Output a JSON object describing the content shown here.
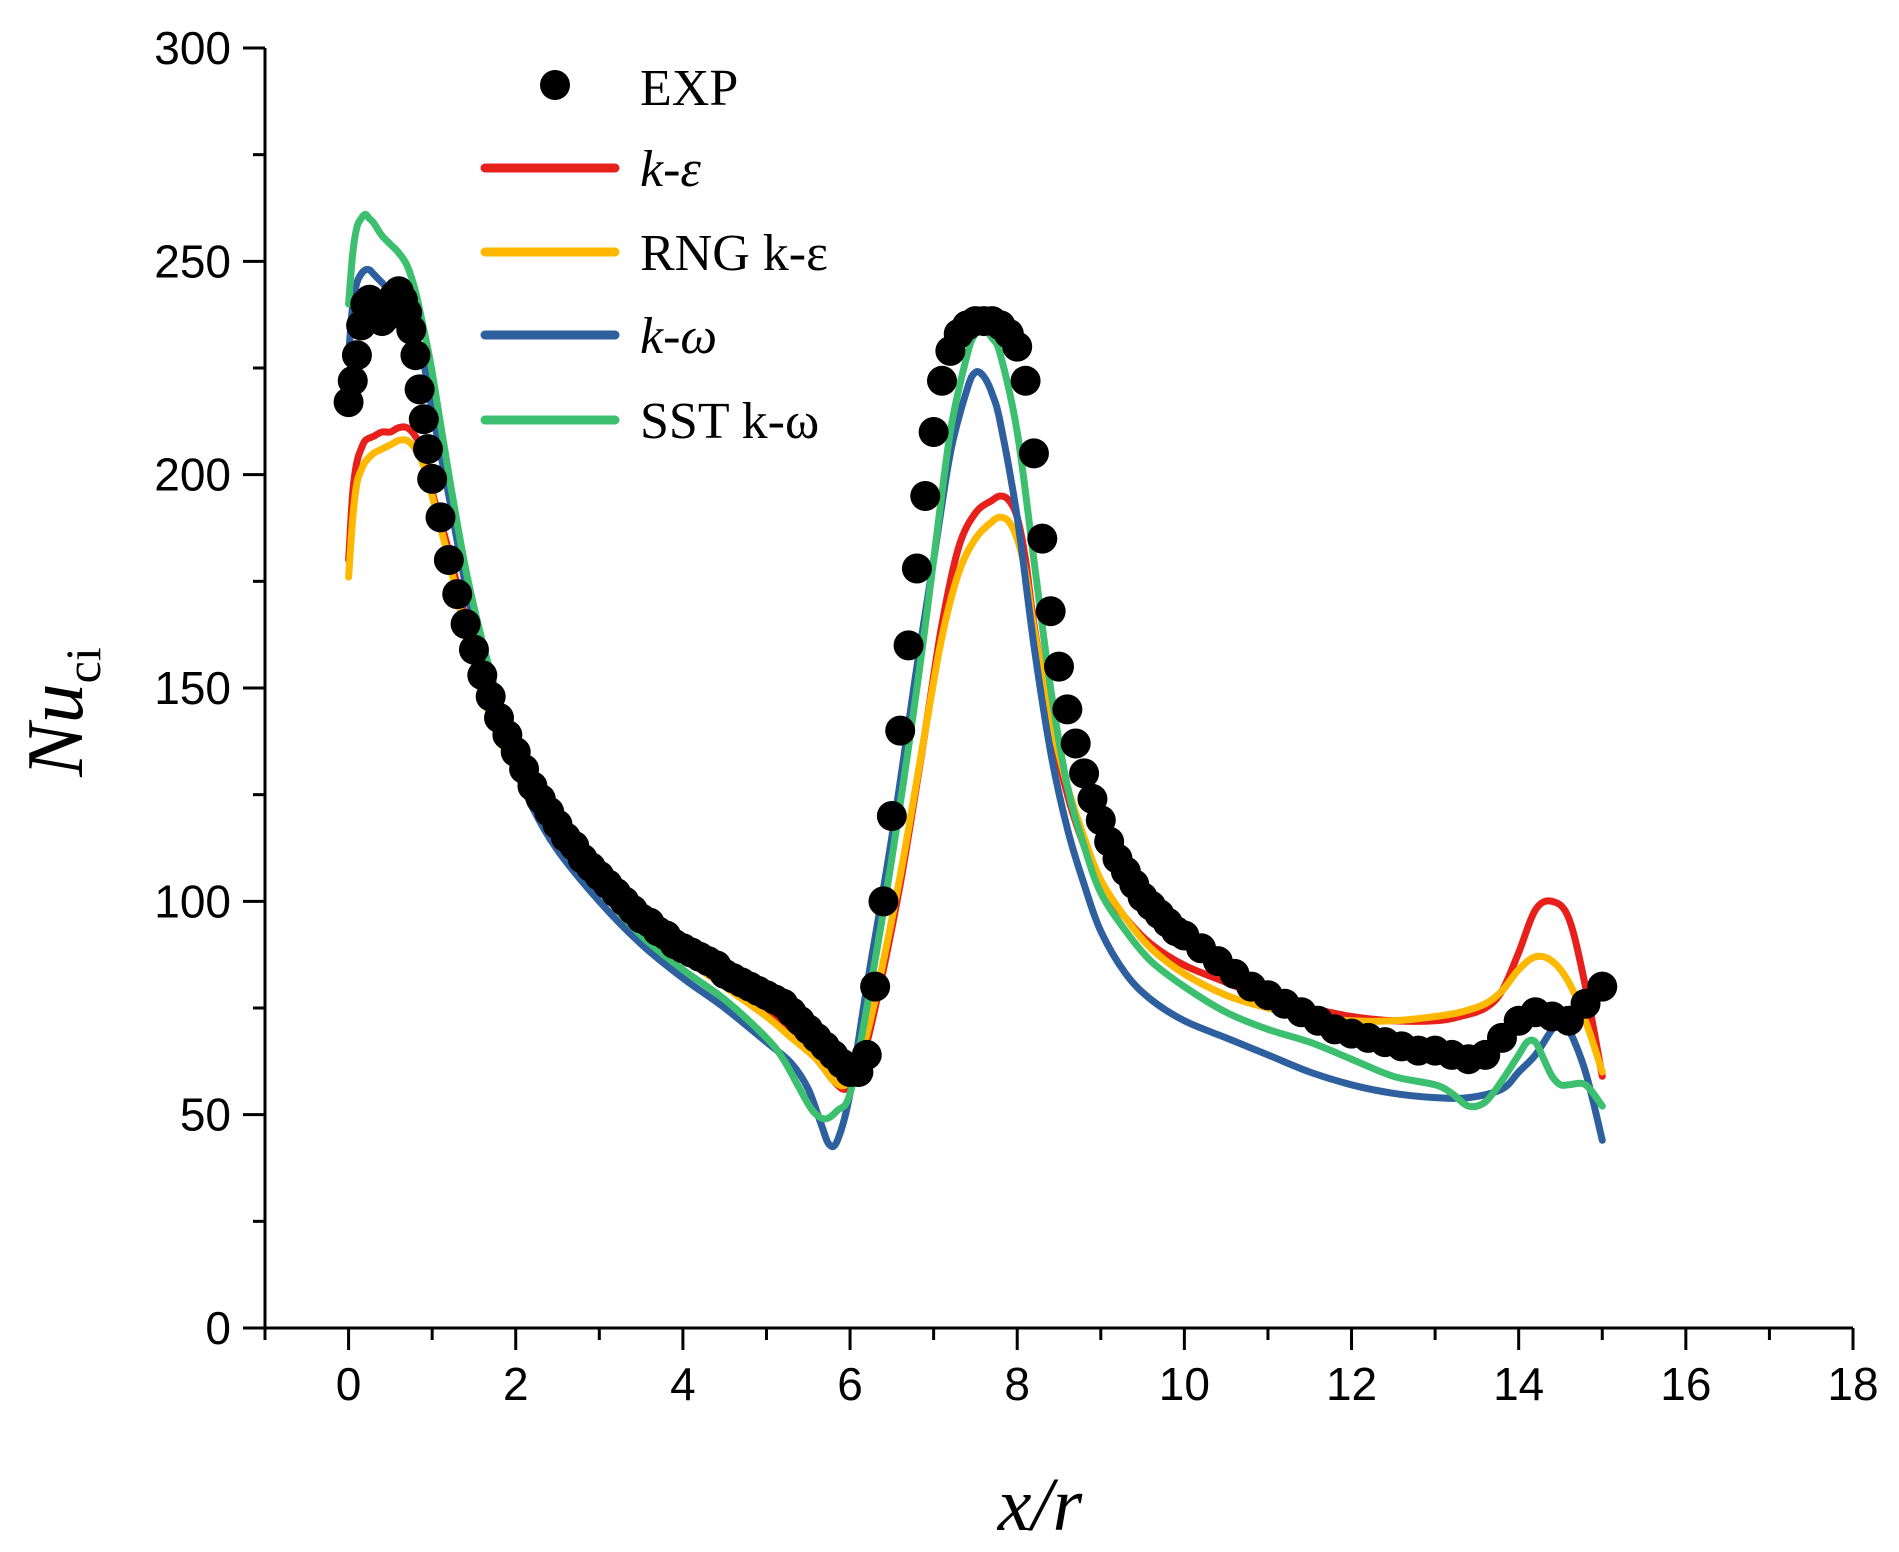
{
  "chart_data": {
    "type": "line",
    "xlabel": "x/r",
    "ylabel": "Nu_ci",
    "ylabel_main": "Nu",
    "ylabel_sub": "ci",
    "xlim": [
      -1,
      18
    ],
    "ylim": [
      0,
      300
    ],
    "xticks": [
      0,
      2,
      4,
      6,
      8,
      10,
      12,
      14,
      16,
      18
    ],
    "yticks": [
      0,
      50,
      100,
      150,
      200,
      250,
      300
    ],
    "xtick_labels": [
      "0",
      "2",
      "4",
      "6",
      "8",
      "10",
      "12",
      "14",
      "16",
      "18"
    ],
    "ytick_labels": [
      "0",
      "50",
      "100",
      "150",
      "200",
      "250",
      "300"
    ],
    "legend_position": "top-left",
    "grid": false,
    "experimental": {
      "name": "EXP",
      "color": "#000000",
      "x": [
        0.0,
        0.05,
        0.1,
        0.15,
        0.2,
        0.25,
        0.3,
        0.35,
        0.4,
        0.45,
        0.5,
        0.55,
        0.6,
        0.65,
        0.7,
        0.75,
        0.8,
        0.85,
        0.9,
        0.95,
        1.0,
        1.1,
        1.2,
        1.3,
        1.4,
        1.5,
        1.6,
        1.7,
        1.8,
        1.9,
        2.0,
        2.1,
        2.2,
        2.3,
        2.4,
        2.5,
        2.6,
        2.7,
        2.8,
        2.9,
        3.0,
        3.1,
        3.2,
        3.3,
        3.4,
        3.5,
        3.6,
        3.7,
        3.8,
        3.9,
        4.0,
        4.1,
        4.2,
        4.3,
        4.4,
        4.5,
        4.6,
        4.7,
        4.8,
        4.9,
        5.0,
        5.1,
        5.2,
        5.3,
        5.4,
        5.5,
        5.6,
        5.7,
        5.8,
        5.9,
        6.0,
        6.1,
        6.2,
        6.3,
        6.4,
        6.5,
        6.6,
        6.7,
        6.8,
        6.9,
        7.0,
        7.1,
        7.2,
        7.3,
        7.4,
        7.5,
        7.6,
        7.7,
        7.8,
        7.9,
        8.0,
        8.1,
        8.2,
        8.3,
        8.4,
        8.5,
        8.6,
        8.7,
        8.8,
        8.9,
        9.0,
        9.1,
        9.2,
        9.3,
        9.4,
        9.5,
        9.6,
        9.7,
        9.8,
        9.9,
        10.0,
        10.2,
        10.4,
        10.6,
        10.8,
        11.0,
        11.2,
        11.4,
        11.6,
        11.8,
        12.0,
        12.2,
        12.4,
        12.6,
        12.8,
        13.0,
        13.2,
        13.4,
        13.6,
        13.8,
        14.0,
        14.2,
        14.4,
        14.6,
        14.8,
        15.0
      ],
      "y": [
        217,
        222,
        228,
        235,
        240,
        241,
        239,
        237,
        236,
        237,
        240,
        242,
        243,
        241,
        238,
        234,
        228,
        220,
        213,
        206,
        199,
        190,
        180,
        172,
        165,
        159,
        153,
        148,
        143,
        139,
        135,
        131,
        127,
        124,
        121,
        118,
        115,
        113,
        110,
        108,
        106,
        104,
        102,
        100,
        98,
        96,
        95,
        93,
        92,
        90,
        89,
        88,
        87,
        86,
        85,
        83,
        82,
        81,
        80,
        79,
        78,
        77,
        76,
        74,
        72,
        70,
        68,
        66,
        64,
        62,
        60,
        60,
        64,
        80,
        100,
        120,
        140,
        160,
        178,
        195,
        210,
        222,
        229,
        233,
        235,
        236,
        236,
        236,
        235,
        233,
        230,
        222,
        205,
        185,
        168,
        155,
        145,
        137,
        130,
        124,
        119,
        114,
        110,
        107,
        104,
        101,
        99,
        97,
        95,
        93,
        92,
        89,
        86,
        83,
        80,
        78,
        76,
        74,
        72,
        70,
        69,
        68,
        67,
        66,
        65,
        65,
        64,
        63,
        64,
        68,
        72,
        74,
        73,
        72,
        76,
        80
      ]
    },
    "series": [
      {
        "name": "k-ε",
        "color": "#e8201c",
        "x": [
          0.0,
          0.05,
          0.1,
          0.15,
          0.2,
          0.3,
          0.4,
          0.5,
          0.6,
          0.7,
          0.8,
          0.9,
          1.0,
          1.2,
          1.4,
          1.6,
          1.8,
          2.0,
          2.2,
          2.5,
          3.0,
          3.5,
          4.0,
          4.5,
          5.0,
          5.3,
          5.6,
          5.8,
          5.95,
          6.1,
          6.3,
          6.6,
          6.9,
          7.1,
          7.3,
          7.5,
          7.7,
          7.8,
          7.9,
          8.0,
          8.1,
          8.2,
          8.4,
          8.6,
          8.8,
          9.0,
          9.3,
          9.6,
          10.0,
          10.5,
          11.0,
          11.5,
          12.0,
          12.5,
          13.0,
          13.3,
          13.6,
          13.8,
          14.0,
          14.2,
          14.4,
          14.6,
          14.8,
          15.0
        ],
        "y": [
          180,
          196,
          203,
          206,
          208,
          209,
          210,
          210,
          211,
          211,
          209,
          205,
          196,
          182,
          166,
          152,
          141,
          134,
          128,
          120,
          108,
          98,
          89,
          82,
          74,
          69,
          63,
          58,
          56,
          60,
          75,
          104,
          140,
          165,
          183,
          191,
          194,
          195,
          194,
          190,
          180,
          165,
          142,
          125,
          113,
          104,
          96,
          90,
          85,
          81,
          77,
          75,
          73,
          72,
          72,
          73,
          75,
          79,
          88,
          98,
          100,
          96,
          80,
          59
        ]
      },
      {
        "name": "RNG k-ε",
        "color": "#ffb800",
        "x": [
          0.0,
          0.05,
          0.1,
          0.15,
          0.2,
          0.3,
          0.4,
          0.5,
          0.6,
          0.7,
          0.8,
          0.9,
          1.0,
          1.2,
          1.4,
          1.6,
          1.8,
          2.0,
          2.2,
          2.5,
          3.0,
          3.5,
          4.0,
          4.5,
          5.0,
          5.3,
          5.6,
          5.8,
          5.95,
          6.1,
          6.3,
          6.6,
          6.9,
          7.1,
          7.3,
          7.5,
          7.7,
          7.8,
          7.9,
          8.0,
          8.1,
          8.2,
          8.4,
          8.6,
          8.8,
          9.0,
          9.3,
          9.6,
          10.0,
          10.5,
          11.0,
          11.5,
          12.0,
          12.5,
          13.0,
          13.3,
          13.6,
          13.8,
          14.0,
          14.2,
          14.4,
          14.6,
          14.8,
          15.0
        ],
        "y": [
          176,
          190,
          198,
          201,
          203,
          205,
          206,
          207,
          208,
          208,
          206,
          202,
          195,
          180,
          163,
          149,
          138,
          131,
          125,
          116,
          104,
          95,
          87,
          80,
          73,
          68,
          63,
          58,
          57,
          62,
          77,
          106,
          140,
          162,
          177,
          185,
          189,
          190,
          189,
          185,
          177,
          164,
          143,
          127,
          115,
          105,
          96,
          89,
          83,
          78,
          75,
          73,
          72,
          72,
          73,
          74,
          76,
          79,
          84,
          87,
          86,
          81,
          72,
          60
        ]
      },
      {
        "name": "k-ω",
        "color": "#2e5f9e",
        "x": [
          0.0,
          0.05,
          0.1,
          0.15,
          0.2,
          0.25,
          0.3,
          0.4,
          0.5,
          0.6,
          0.7,
          0.8,
          0.9,
          1.0,
          1.2,
          1.4,
          1.6,
          1.8,
          2.0,
          2.2,
          2.5,
          3.0,
          3.5,
          4.0,
          4.5,
          5.0,
          5.3,
          5.5,
          5.65,
          5.75,
          5.85,
          6.0,
          6.2,
          6.5,
          6.8,
          7.0,
          7.2,
          7.4,
          7.5,
          7.6,
          7.7,
          7.8,
          8.0,
          8.2,
          8.4,
          8.6,
          8.8,
          9.0,
          9.3,
          9.6,
          10.0,
          10.5,
          11.0,
          11.5,
          12.0,
          12.5,
          13.0,
          13.4,
          13.8,
          14.0,
          14.2,
          14.4,
          14.5,
          14.6,
          14.8,
          15.0
        ],
        "y": [
          228,
          240,
          245,
          247,
          248,
          248,
          247,
          245,
          243,
          241,
          238,
          233,
          226,
          215,
          195,
          174,
          156,
          142,
          131,
          122,
          112,
          100,
          90,
          82,
          75,
          67,
          62,
          56,
          48,
          43,
          44,
          55,
          80,
          115,
          155,
          180,
          205,
          220,
          224,
          223,
          219,
          212,
          190,
          160,
          135,
          117,
          104,
          93,
          83,
          77,
          72,
          68,
          64,
          60,
          57,
          55,
          54,
          54,
          56,
          60,
          64,
          70,
          72,
          70,
          60,
          44
        ]
      },
      {
        "name": "SST k-ω",
        "color": "#3cc070",
        "x": [
          0.0,
          0.05,
          0.1,
          0.15,
          0.2,
          0.25,
          0.3,
          0.4,
          0.5,
          0.6,
          0.7,
          0.8,
          0.9,
          1.0,
          1.2,
          1.4,
          1.6,
          1.8,
          2.0,
          2.2,
          2.5,
          3.0,
          3.5,
          4.0,
          4.5,
          5.0,
          5.2,
          5.4,
          5.55,
          5.7,
          5.85,
          6.0,
          6.2,
          6.5,
          6.8,
          7.0,
          7.2,
          7.4,
          7.5,
          7.6,
          7.7,
          7.8,
          8.0,
          8.2,
          8.4,
          8.6,
          8.8,
          9.0,
          9.3,
          9.6,
          10.0,
          10.5,
          11.0,
          11.5,
          12.0,
          12.5,
          13.0,
          13.2,
          13.4,
          13.6,
          13.8,
          14.0,
          14.1,
          14.2,
          14.3,
          14.4,
          14.5,
          14.6,
          14.8,
          15.0
        ],
        "y": [
          240,
          252,
          258,
          260,
          261,
          260,
          259,
          256,
          254,
          252,
          249,
          243,
          234,
          224,
          200,
          178,
          161,
          147,
          136,
          127,
          116,
          103,
          92,
          84,
          77,
          68,
          63,
          56,
          51,
          49,
          51,
          55,
          75,
          110,
          150,
          180,
          210,
          228,
          233,
          234,
          232,
          228,
          210,
          180,
          150,
          127,
          113,
          102,
          93,
          86,
          80,
          74,
          70,
          67,
          63,
          59,
          57,
          55,
          52,
          53,
          58,
          64,
          67,
          67,
          63,
          59,
          57,
          57,
          57,
          52
        ]
      }
    ]
  }
}
